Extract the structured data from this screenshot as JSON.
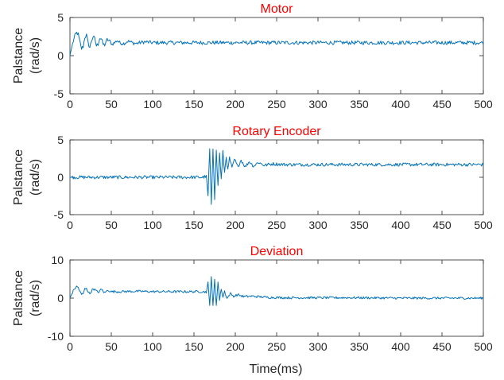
{
  "figure": {
    "xlabel": "Time(ms)"
  },
  "chart_data": [
    {
      "type": "line",
      "title": "Motor",
      "ylabel_line1": "Palstance",
      "ylabel_line2": "(rad/s)",
      "xlim": [
        0,
        500
      ],
      "ylim": [
        -5,
        5
      ],
      "xticks": [
        0,
        50,
        100,
        150,
        200,
        250,
        300,
        350,
        400,
        450,
        500
      ],
      "yticks": [
        -5,
        0,
        5
      ],
      "grid": false,
      "color": "#0072BD",
      "series": [
        {
          "x": [
            0,
            2,
            4,
            6,
            8,
            10,
            12,
            14,
            16,
            18,
            20,
            22,
            24,
            26,
            28,
            30,
            32,
            34,
            36,
            38,
            40,
            42,
            45,
            48,
            51,
            54,
            57,
            60,
            65,
            70,
            75,
            80,
            90,
            100,
            120,
            150,
            180,
            200,
            250,
            300,
            350,
            400,
            450,
            500
          ],
          "y": [
            0,
            1.0,
            1.9,
            2.6,
            3.0,
            2.8,
            1.8,
            0.9,
            1.2,
            2.4,
            2.7,
            1.6,
            1.1,
            1.9,
            2.5,
            2.2,
            1.3,
            1.5,
            2.3,
            2.2,
            1.5,
            1.4,
            2.1,
            1.9,
            1.5,
            1.7,
            2.0,
            1.7,
            1.6,
            1.9,
            1.7,
            1.6,
            1.8,
            1.7,
            1.7,
            1.7,
            1.7,
            1.7,
            1.7,
            1.7,
            1.7,
            1.7,
            1.7,
            1.7
          ],
          "noise": 0.25
        }
      ]
    },
    {
      "type": "line",
      "title": "Rotary Encoder",
      "ylabel_line1": "Palstance",
      "ylabel_line2": "(rad/s)",
      "xlim": [
        0,
        500
      ],
      "ylim": [
        -5,
        5
      ],
      "xticks": [
        0,
        50,
        100,
        150,
        200,
        250,
        300,
        350,
        400,
        450,
        500
      ],
      "yticks": [
        -5,
        0,
        5
      ],
      "grid": false,
      "color": "#0072BD",
      "series": [
        {
          "x": [
            0,
            50,
            100,
            150,
            160,
            165,
            167,
            169,
            171,
            173,
            175,
            177,
            179,
            181,
            183,
            185,
            187,
            189,
            191,
            193,
            196,
            199,
            203,
            207,
            212,
            217,
            222,
            228,
            235,
            245,
            260,
            300,
            350,
            400,
            450,
            500
          ],
          "y": [
            0,
            0,
            0,
            0,
            0,
            0.1,
            -2.5,
            3.8,
            -3.8,
            3.9,
            -2.8,
            3.5,
            -1.2,
            3.2,
            -0.3,
            3.4,
            0.6,
            2.8,
            0.9,
            2.6,
            1.2,
            2.4,
            1.4,
            2.3,
            1.4,
            2.1,
            1.5,
            2.0,
            1.6,
            1.8,
            1.7,
            1.7,
            1.7,
            1.7,
            1.7,
            1.7
          ],
          "noise": 0.22
        }
      ]
    },
    {
      "type": "line",
      "title": "Deviation",
      "ylabel_line1": "Palstance",
      "ylabel_line2": "(rad/s)",
      "xlabel": "Time(ms)",
      "xlim": [
        0,
        500
      ],
      "ylim": [
        -10,
        10
      ],
      "xticks": [
        0,
        50,
        100,
        150,
        200,
        250,
        300,
        350,
        400,
        450,
        500
      ],
      "yticks": [
        -10,
        0,
        10
      ],
      "grid": false,
      "color": "#0072BD",
      "series": [
        {
          "x": [
            0,
            2,
            4,
            6,
            8,
            10,
            12,
            14,
            16,
            18,
            20,
            22,
            24,
            26,
            28,
            30,
            34,
            38,
            42,
            46,
            50,
            60,
            80,
            100,
            130,
            160,
            165,
            167,
            169,
            171,
            173,
            175,
            177,
            179,
            181,
            183,
            185,
            187,
            190,
            194,
            198,
            203,
            210,
            220,
            240,
            260,
            300,
            350,
            400,
            450,
            500
          ],
          "y": [
            0,
            1.0,
            1.9,
            2.6,
            3.0,
            2.8,
            1.8,
            0.9,
            1.2,
            2.4,
            2.7,
            1.6,
            1.1,
            1.9,
            2.5,
            2.2,
            1.5,
            2.3,
            1.4,
            2.1,
            1.7,
            1.7,
            1.8,
            1.7,
            1.7,
            1.7,
            1.6,
            4.0,
            -2.0,
            5.8,
            -2.2,
            4.8,
            -1.8,
            4.2,
            -0.5,
            2.5,
            0.2,
            1.8,
            -0.1,
            1.2,
            0.5,
            0.9,
            0.4,
            0.5,
            0.2,
            0.1,
            0.1,
            0.1,
            0.0,
            0.0,
            0.0
          ],
          "noise": 0.3
        }
      ]
    }
  ]
}
